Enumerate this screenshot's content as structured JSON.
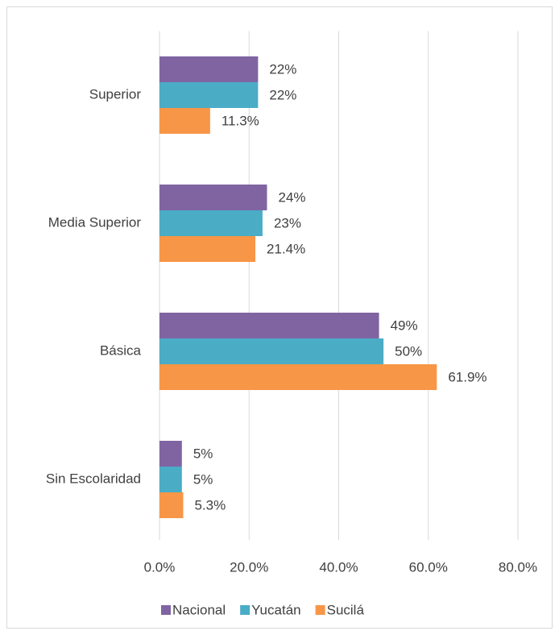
{
  "chart_data": {
    "type": "bar",
    "orientation": "horizontal",
    "categories": [
      "Superior",
      "Media Superior",
      "Básica",
      "Sin Escolaridad"
    ],
    "series": [
      {
        "name": "Nacional",
        "color": "#8064a2",
        "values": [
          22,
          24,
          49,
          5
        ],
        "value_labels": [
          "22%",
          "24%",
          "49%",
          "5%"
        ]
      },
      {
        "name": "Yucatán",
        "color": "#4bacc6",
        "values": [
          22,
          23,
          50,
          5
        ],
        "value_labels": [
          "22%",
          "23%",
          "50%",
          "5%"
        ]
      },
      {
        "name": "Sucilá",
        "color": "#f79646",
        "values": [
          11.3,
          21.4,
          61.9,
          5.3
        ],
        "value_labels": [
          "11.3%",
          "21.4%",
          "61.9%",
          "5.3%"
        ]
      }
    ],
    "xlim": [
      0,
      80
    ],
    "xticks": [
      {
        "value": 0,
        "label": "0.0%"
      },
      {
        "value": 20,
        "label": "20.0%"
      },
      {
        "value": 40,
        "label": "40.0%"
      },
      {
        "value": 60,
        "label": "60.0%"
      },
      {
        "value": 80,
        "label": "80.0%"
      }
    ],
    "grid": true,
    "legend": "bottom"
  }
}
